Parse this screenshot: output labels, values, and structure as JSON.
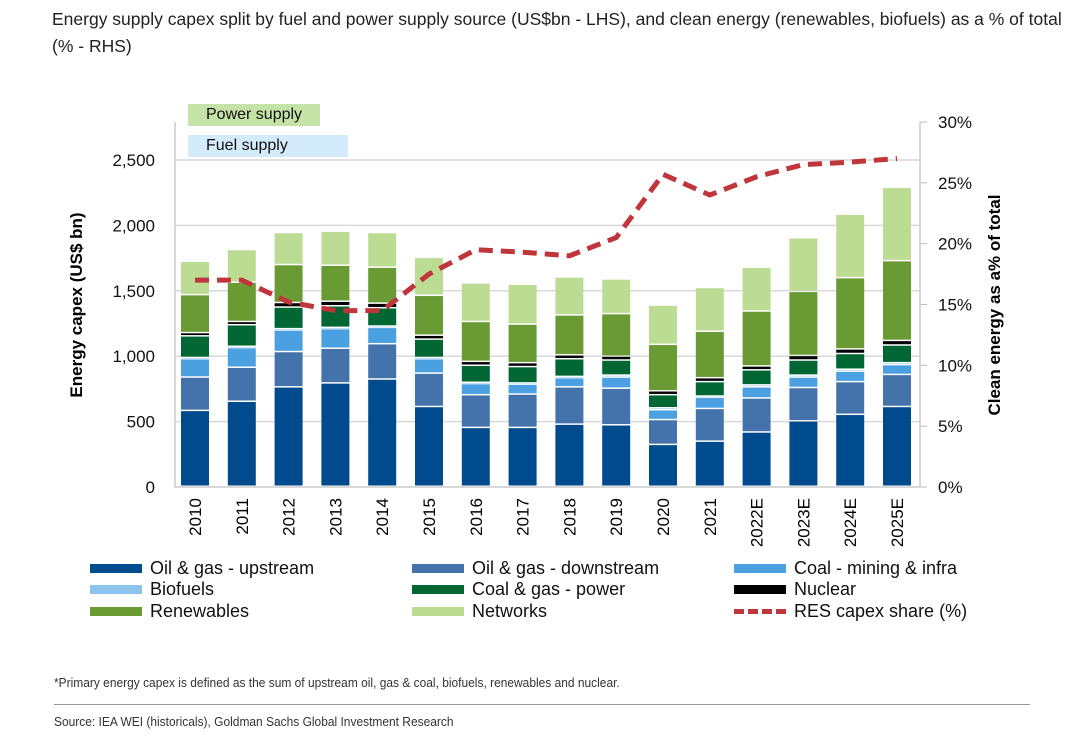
{
  "title": "Energy supply capex split by fuel and power supply source (US$bn - LHS), and clean energy (renewables, biofuels) as a % of total (% - RHS)",
  "footnote": "*Primary energy capex is defined as the sum of upstream oil, gas & coal, biofuels, renewables and nuclear.",
  "source": "Source: IEA WEI (historicals), Goldman Sachs Global Investment Research",
  "chart_data": {
    "type": "bar",
    "stacked": true,
    "title": "",
    "xlabel": "",
    "ylabel": "Energy capex (US$ bn)",
    "y2label": "Clean energy as a% of total",
    "ylim": [
      0,
      2800
    ],
    "y2lim": [
      0,
      30
    ],
    "yticks": [
      "0",
      "500",
      "1,000",
      "1,500",
      "2,000",
      "2,500"
    ],
    "y2ticks": [
      "0%",
      "5%",
      "10%",
      "15%",
      "20%",
      "25%",
      "30%"
    ],
    "grid": true,
    "legend_placement": "bottom",
    "group_labels": {
      "power": "Power supply",
      "fuel": "Fuel supply"
    },
    "categories": [
      "2010",
      "2011",
      "2012",
      "2013",
      "2014",
      "2015",
      "2016",
      "2017",
      "2018",
      "2019",
      "2020",
      "2021",
      "2022E",
      "2023E",
      "2024E",
      "2025E"
    ],
    "series": [
      {
        "name": "Oil & gas - upstream",
        "color": "#004b8d",
        "values": [
          580,
          650,
          760,
          790,
          820,
          610,
          450,
          450,
          475,
          470,
          320,
          345,
          415,
          500,
          550,
          610
        ]
      },
      {
        "name": "Oil & gas - downstream",
        "color": "#4472aa",
        "values": [
          255,
          260,
          270,
          265,
          270,
          255,
          250,
          255,
          285,
          280,
          190,
          250,
          260,
          255,
          250,
          245
        ]
      },
      {
        "name": "Coal - mining & infra",
        "color": "#4aa0e0",
        "values": [
          140,
          150,
          165,
          150,
          125,
          110,
          85,
          75,
          70,
          85,
          75,
          85,
          85,
          80,
          80,
          75
        ]
      },
      {
        "name": "Biofuels",
        "color": "#8cc4ee",
        "values": [
          10,
          10,
          10,
          10,
          10,
          10,
          10,
          10,
          10,
          15,
          15,
          10,
          15,
          15,
          15,
          15
        ]
      },
      {
        "name": "Coal & gas - power",
        "color": "#006633",
        "values": [
          165,
          165,
          165,
          165,
          140,
          140,
          130,
          125,
          135,
          115,
          100,
          110,
          115,
          115,
          120,
          135
        ]
      },
      {
        "name": "Nuclear",
        "color": "#000000",
        "values": [
          25,
          25,
          35,
          35,
          35,
          30,
          30,
          30,
          30,
          30,
          30,
          30,
          30,
          35,
          35,
          35
        ]
      },
      {
        "name": "Renewables",
        "color": "#6a9a33",
        "values": [
          290,
          300,
          290,
          275,
          275,
          305,
          305,
          295,
          305,
          325,
          355,
          355,
          420,
          490,
          545,
          610
        ]
      },
      {
        "name": "Networks",
        "color": "#bcdc94",
        "values": [
          255,
          250,
          245,
          260,
          265,
          290,
          295,
          305,
          290,
          265,
          300,
          335,
          335,
          410,
          485,
          560
        ]
      }
    ],
    "line": {
      "name": "RES capex share (%)",
      "color": "#c0353a",
      "axis": "right",
      "values": [
        17,
        17,
        15.2,
        14.5,
        14.5,
        17.5,
        19.5,
        19.3,
        19,
        20.5,
        25.7,
        24,
        25.5,
        26.5,
        26.7,
        27
      ]
    }
  }
}
